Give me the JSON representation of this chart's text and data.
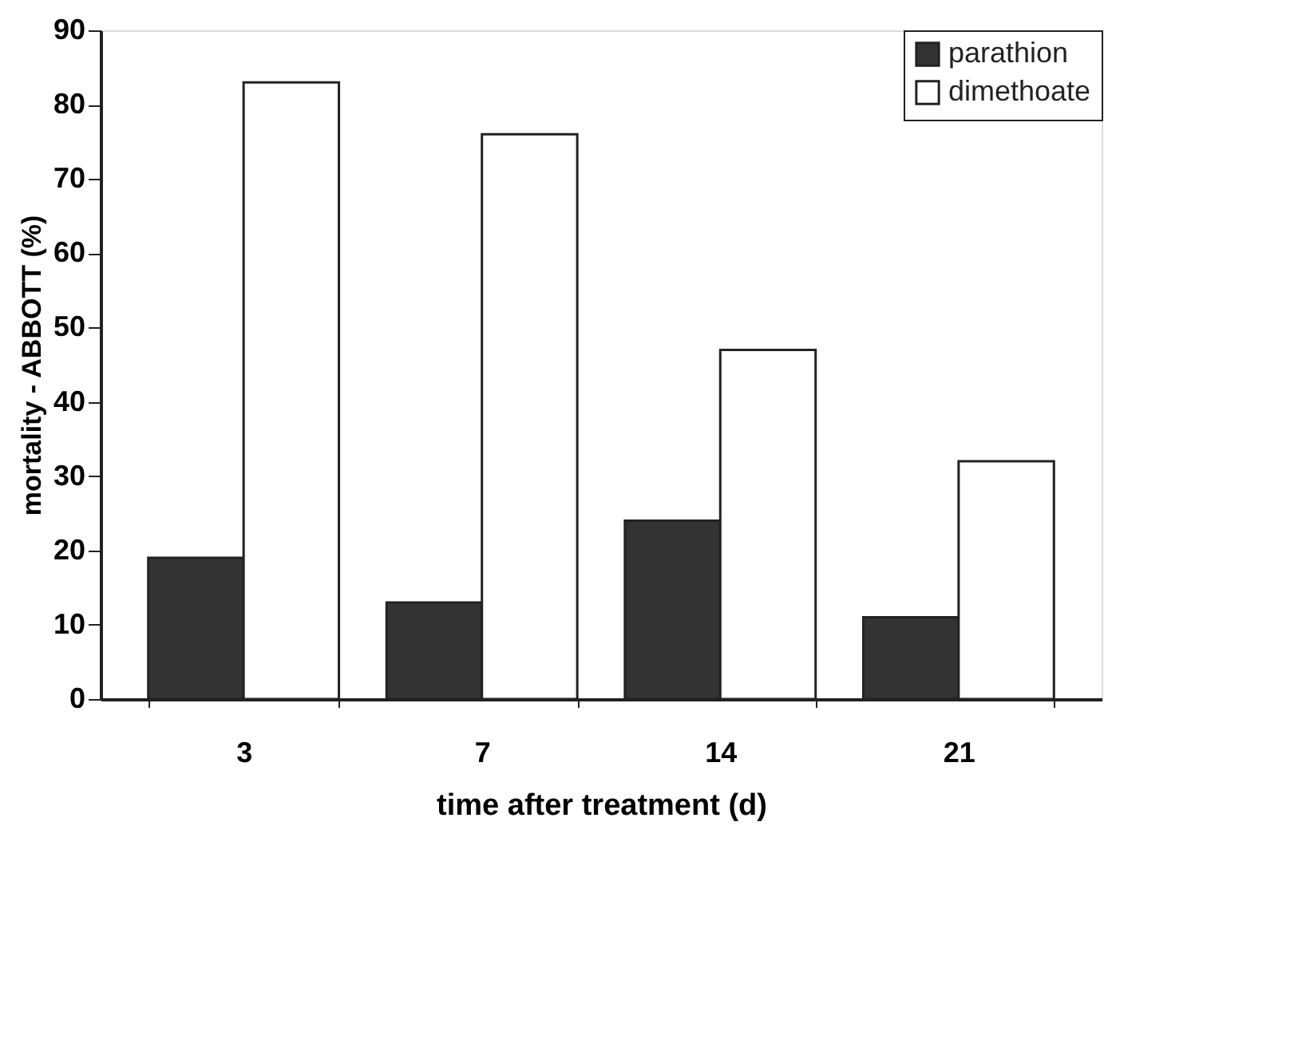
{
  "chart_data": {
    "type": "bar",
    "xlabel": "time after treatment (d)",
    "ylabel": "mortality - ABBOTT (%)",
    "categories": [
      "3",
      "7",
      "14",
      "21"
    ],
    "series": [
      {
        "name": "parathion",
        "color": "#333333",
        "values": [
          19,
          13,
          24,
          11
        ]
      },
      {
        "name": "dimethoate",
        "color": "#ffffff",
        "values": [
          83,
          76,
          47,
          32
        ]
      }
    ],
    "ylim": [
      0,
      90
    ],
    "yticks": [
      0,
      10,
      20,
      30,
      40,
      50,
      60,
      70,
      80,
      90
    ],
    "grid": false,
    "legend": "top right"
  }
}
